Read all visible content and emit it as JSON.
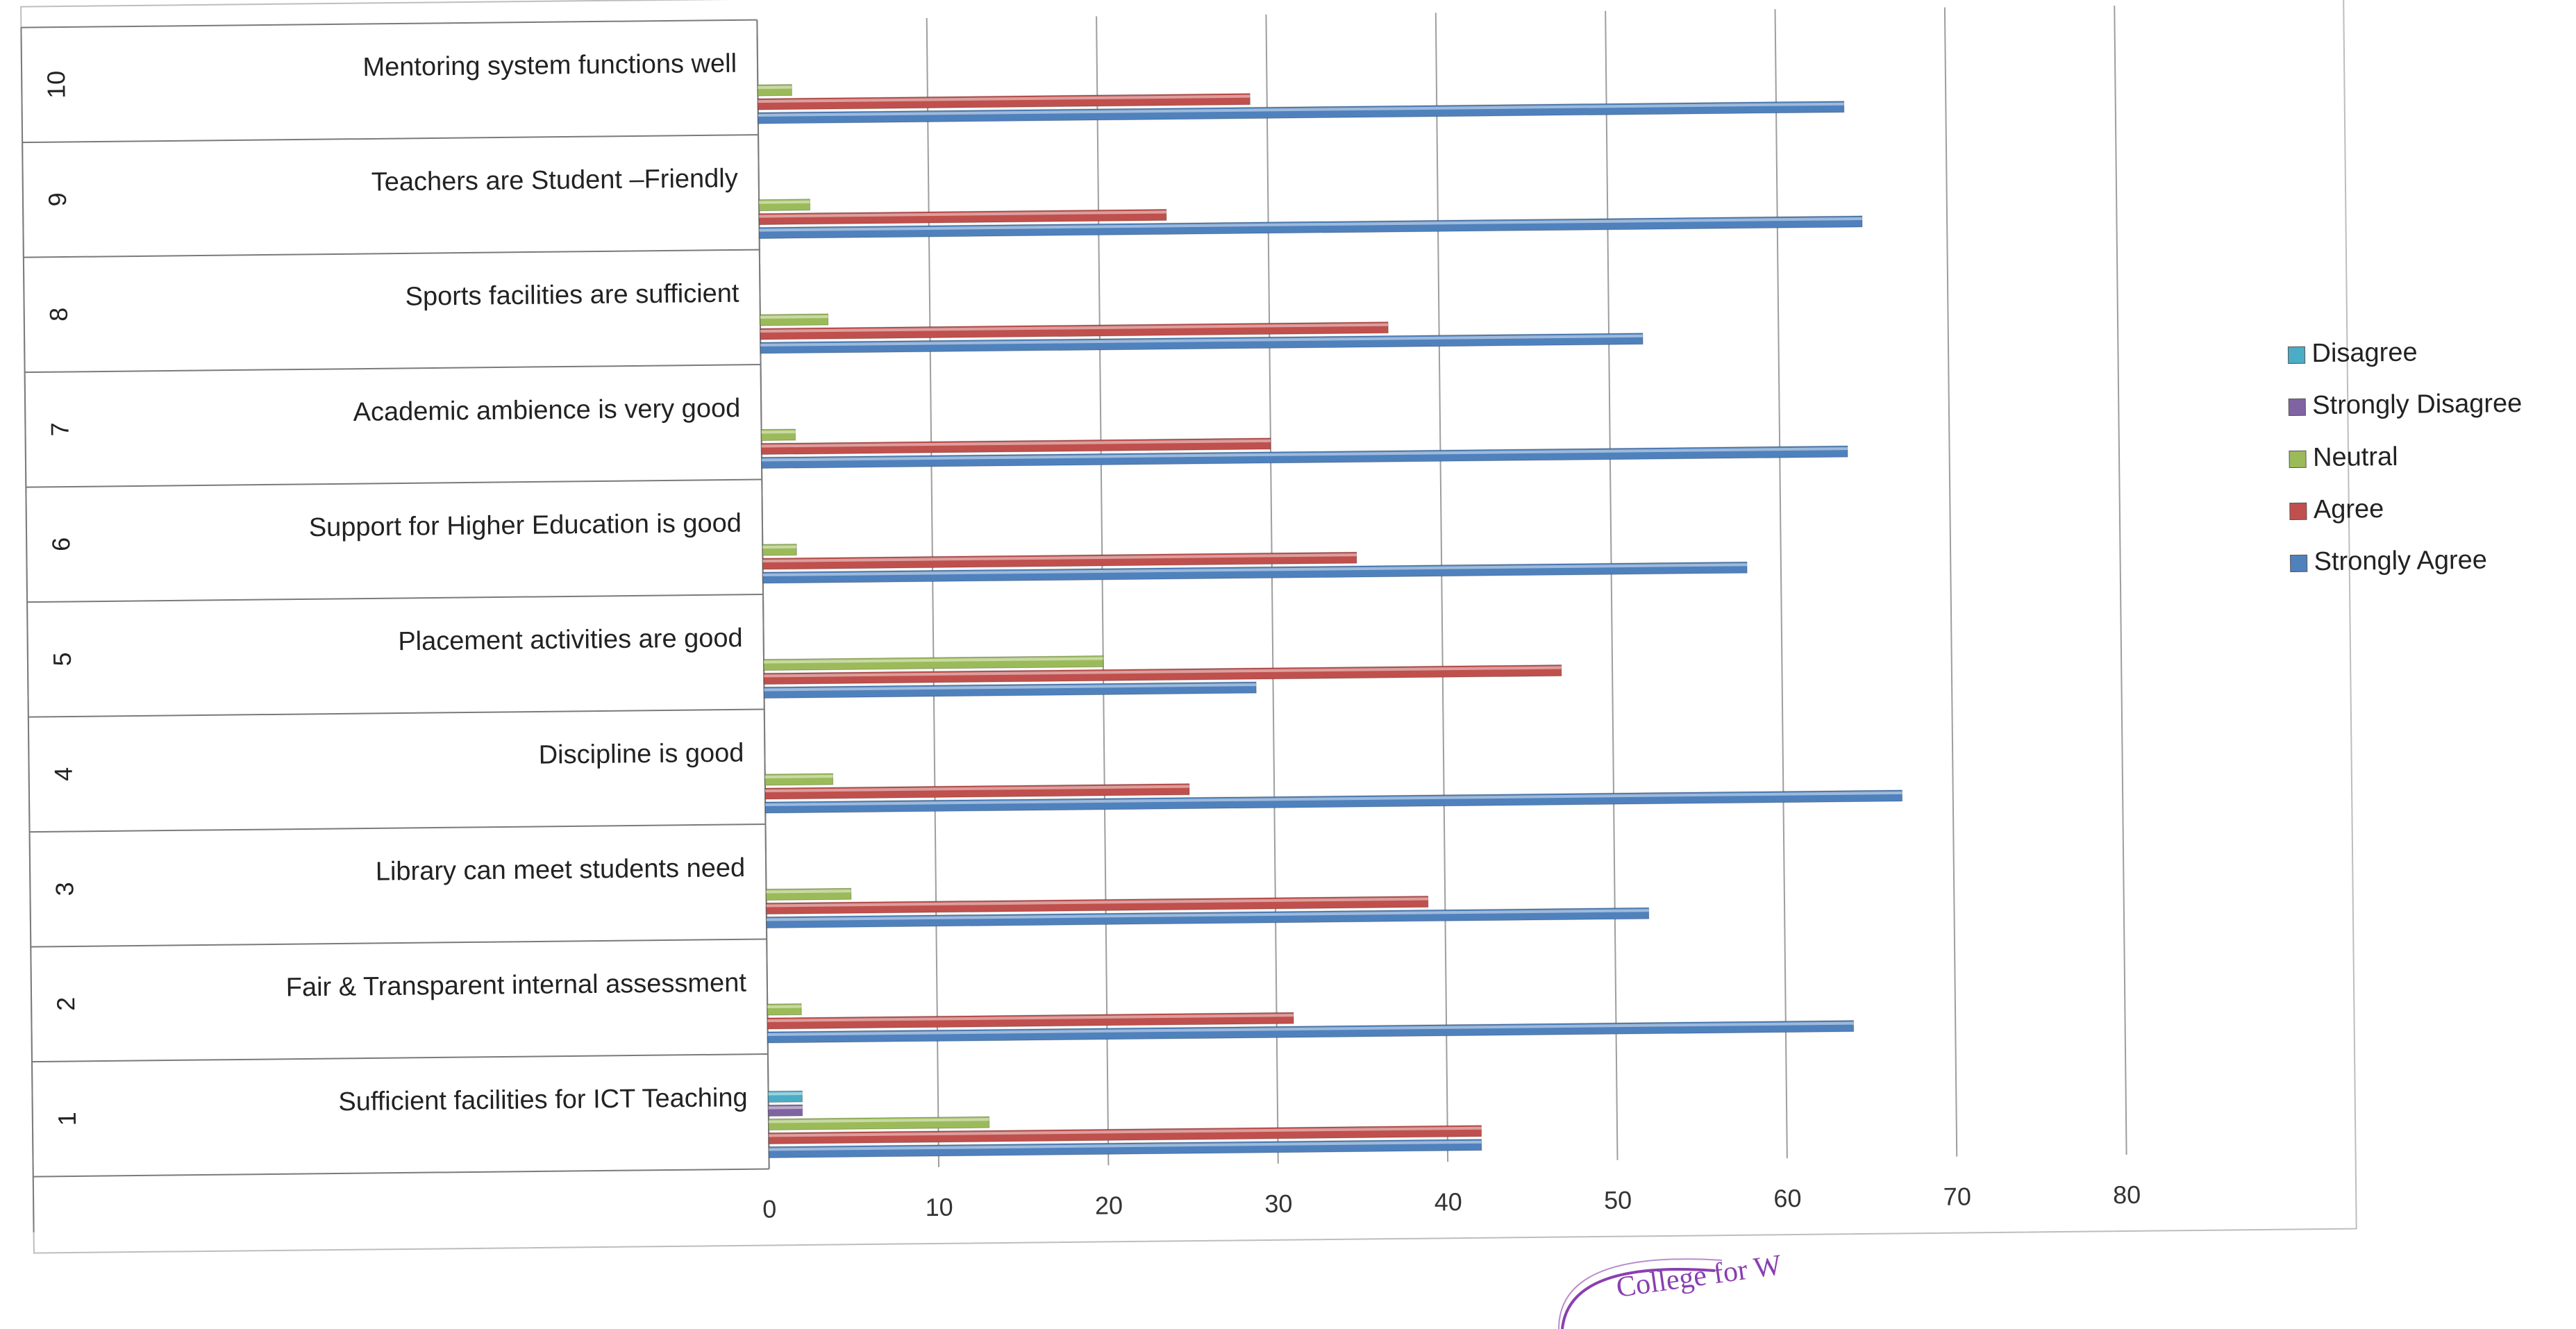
{
  "chart_data": {
    "type": "bar",
    "orientation": "horizontal",
    "categories": [
      "Sufficient facilities for ICT Teaching",
      "Fair & Transparent internal assessment",
      "Library can meet students need",
      "Discipline is good",
      "Placement activities are good",
      "Support for Higher Education is good",
      "Academic ambience is very good",
      "Sports facilities are sufficient",
      "Teachers are Student –Friendly",
      "Mentoring system functions well"
    ],
    "category_numbers": [
      "1",
      "2",
      "3",
      "4",
      "5",
      "6",
      "7",
      "8",
      "9",
      "10"
    ],
    "series": [
      {
        "name": "Strongly Agree",
        "color": "#4f81bd",
        "values": [
          42,
          64,
          52,
          67,
          29,
          58,
          64,
          52,
          65,
          64
        ]
      },
      {
        "name": "Agree",
        "color": "#c0504d",
        "values": [
          42,
          31,
          39,
          25,
          47,
          35,
          30,
          37,
          24,
          29
        ]
      },
      {
        "name": "Neutral",
        "color": "#9bbb59",
        "values": [
          13,
          2,
          5,
          4,
          20,
          2,
          2,
          4,
          3,
          2
        ]
      },
      {
        "name": "Strongly Disagree",
        "color": "#8064a2",
        "values": [
          2,
          0,
          0,
          0,
          0,
          0,
          0,
          0,
          0,
          0
        ]
      },
      {
        "name": "Disagree",
        "color": "#4bacc6",
        "values": [
          2,
          0,
          0,
          0,
          0,
          0,
          0,
          0,
          0,
          0
        ]
      }
    ],
    "legend_order": [
      "Disagree",
      "Strongly Disagree",
      "Neutral",
      "Agree",
      "Strongly Agree"
    ],
    "legend_position": "right",
    "xlim": [
      0,
      80
    ],
    "xticks": [
      "0",
      "10",
      "20",
      "30",
      "40",
      "50",
      "60",
      "70",
      "80"
    ],
    "grid": true,
    "title": "",
    "xlabel": "",
    "ylabel": ""
  },
  "seal_text": "College for W"
}
